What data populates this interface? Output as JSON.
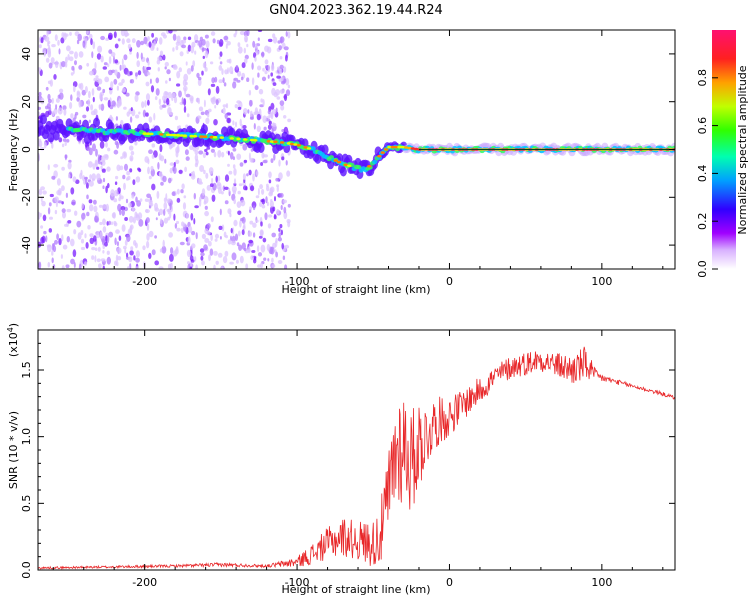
{
  "title": "GN04.2023.362.19.44.R24",
  "chart_data": [
    {
      "type": "heatmap",
      "xlabel": "Height of straight line (km)",
      "ylabel": "Frequency (Hz)",
      "xlim": [
        -270,
        148
      ],
      "ylim": [
        -50,
        50
      ],
      "xticks": [
        -200,
        -100,
        0,
        100
      ],
      "xtick_labels": [
        "-200",
        "-100",
        "0",
        "100"
      ],
      "yticks": [
        -40,
        -20,
        0,
        20,
        40
      ],
      "ytick_labels": [
        "-40",
        "-20",
        "0",
        "20",
        "40"
      ],
      "ridge": {
        "x": [
          -270,
          -240,
          -210,
          -180,
          -150,
          -130,
          -110,
          -100,
          -90,
          -80,
          -70,
          -60,
          -55,
          -50,
          -45,
          -40,
          -30,
          -20,
          0,
          50,
          100,
          148
        ],
        "freq": [
          9,
          8,
          7,
          6,
          5,
          4,
          3,
          2,
          0,
          -3,
          -6,
          -8,
          -8,
          -6,
          -2,
          1,
          1,
          0,
          0,
          0,
          0,
          0
        ]
      },
      "noise_region_x": [
        -270,
        -120
      ],
      "colorbar": {
        "label": "Normalized spectral amplitude",
        "range": [
          0,
          1
        ],
        "ticks": [
          0.0,
          0.2,
          0.4,
          0.6,
          0.8
        ],
        "tick_labels": [
          "0.0",
          "0.2",
          "0.4",
          "0.6",
          "0.8"
        ],
        "colors": [
          "#ffffff",
          "#a000ff",
          "#3000ff",
          "#00a0ff",
          "#00ffb0",
          "#30ff00",
          "#c0ff00",
          "#ffa000",
          "#ff2020",
          "#ff1070"
        ]
      }
    },
    {
      "type": "line",
      "xlabel": "Height of straight line (km)",
      "ylabel": "SNR (10 * v/v)",
      "multiplier_label": "(x10",
      "multiplier_exponent": "4",
      "multiplier_close": ")",
      "xlim": [
        -270,
        148
      ],
      "ylim": [
        0,
        18000
      ],
      "xticks": [
        -200,
        -100,
        0,
        100
      ],
      "xtick_labels": [
        "-200",
        "-100",
        "0",
        "100"
      ],
      "yticks": [
        0,
        5000,
        10000,
        15000
      ],
      "ytick_labels": [
        "0.0",
        "0.5",
        "1.0",
        "1.5"
      ],
      "color": "#e8282a",
      "x": [
        -270,
        -240,
        -210,
        -180,
        -150,
        -120,
        -100,
        -90,
        -80,
        -70,
        -60,
        -50,
        -45,
        -40,
        -35,
        -30,
        -25,
        -20,
        -15,
        -10,
        0,
        10,
        20,
        30,
        40,
        50,
        60,
        70,
        80,
        90,
        95,
        100,
        110,
        120,
        130,
        140,
        148
      ],
      "values": [
        150,
        200,
        250,
        300,
        400,
        300,
        600,
        1200,
        2000,
        2500,
        2200,
        2000,
        2800,
        5500,
        9000,
        9500,
        8000,
        9500,
        10000,
        11000,
        11500,
        12500,
        13500,
        14500,
        15200,
        15500,
        15800,
        15400,
        15000,
        15500,
        14600,
        14400,
        14100,
        13800,
        13500,
        13200,
        12900
      ],
      "noise_amplitude": [
        80,
        80,
        100,
        100,
        150,
        100,
        400,
        800,
        1200,
        1500,
        1500,
        1800,
        2500,
        3500,
        4500,
        4500,
        4000,
        3500,
        2500,
        2000,
        1500,
        1200,
        1000,
        900,
        900,
        900,
        900,
        900,
        1200,
        1400,
        600,
        300,
        200,
        150,
        150,
        150,
        150
      ]
    }
  ]
}
